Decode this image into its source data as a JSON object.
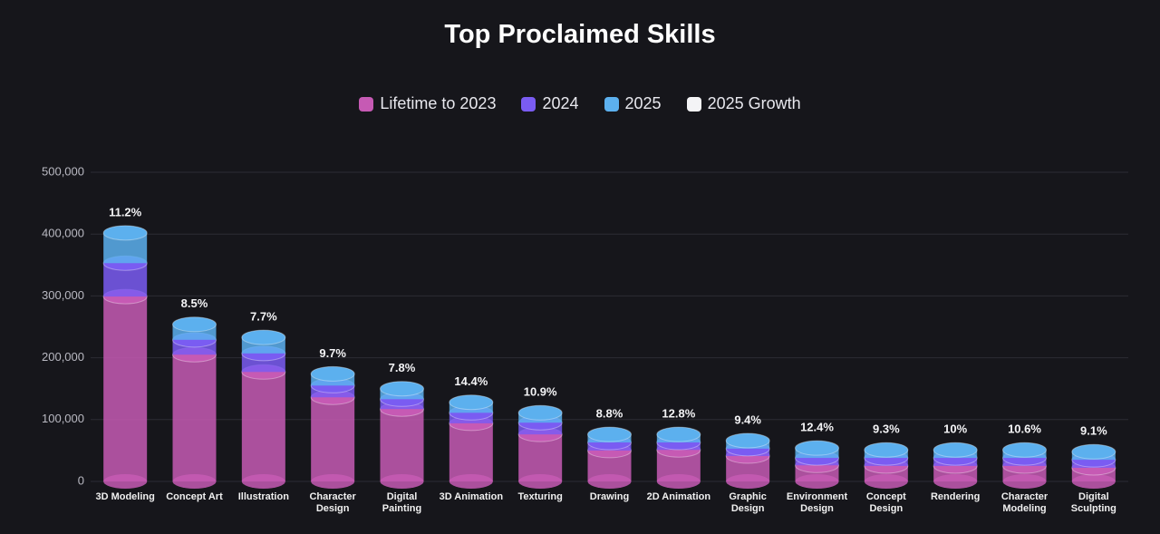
{
  "chart_data": {
    "type": "stacked-cylinder-bar",
    "title": "Top Proclaimed Skills",
    "categories": [
      "3D Modeling",
      "Concept Art",
      "Illustration",
      "Character Design",
      "Digital Painting",
      "3D Animation",
      "Texturing",
      "Drawing",
      "2D Animation",
      "Graphic Design",
      "Environment Design",
      "Concept Design",
      "Rendering",
      "Character Modeling",
      "Digital Sculpting"
    ],
    "series": [
      {
        "name": "Lifetime to 2023",
        "color": "#c65ab4",
        "values": [
          299000,
          205000,
          177000,
          136000,
          117000,
          94000,
          76000,
          50000,
          51000,
          41000,
          26000,
          25000,
          25000,
          25000,
          22000
        ]
      },
      {
        "name": "2024",
        "color": "#7a5cf2",
        "values": [
          54000,
          24000,
          30000,
          19000,
          16000,
          17000,
          19000,
          13000,
          12000,
          12000,
          12000,
          13000,
          13000,
          13000,
          13000
        ]
      },
      {
        "name": "2025",
        "color": "#5cb0ee",
        "values": [
          49000,
          25000,
          26000,
          19000,
          17000,
          17000,
          16000,
          13000,
          13000,
          13000,
          16000,
          13000,
          13000,
          13000,
          13000
        ]
      },
      {
        "name": "2025 Growth",
        "color": "#f4f4f6",
        "values": [
          11.2,
          8.5,
          7.7,
          9.7,
          7.8,
          14.4,
          10.9,
          8.8,
          12.8,
          9.4,
          12.4,
          9.3,
          10,
          10.6,
          9.1
        ],
        "value_labels": [
          "11.2%",
          "8.5%",
          "7.7%",
          "9.7%",
          "7.8%",
          "14.4%",
          "10.9%",
          "8.8%",
          "12.8%",
          "9.4%",
          "12.4%",
          "9.3%",
          "10%",
          "10.6%",
          "9.1%"
        ]
      }
    ],
    "ylim": [
      0,
      500000
    ],
    "yticks": [
      0,
      {
        "value": 100000,
        "label": "100,000"
      },
      {
        "value": 200000,
        "label": "200,000"
      },
      {
        "value": 300000,
        "label": "300,000"
      },
      {
        "value": 400000,
        "label": "400,000"
      },
      {
        "value": 500000,
        "label": "500,000"
      }
    ],
    "grid": true
  }
}
